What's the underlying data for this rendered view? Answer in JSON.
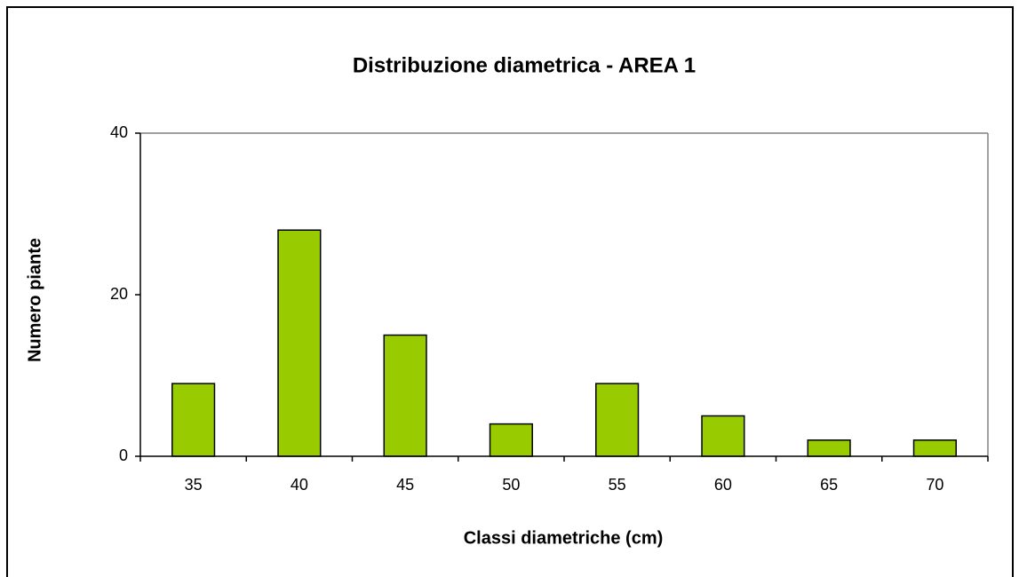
{
  "chart_data": {
    "type": "bar",
    "title": "Distribuzione diametrica - AREA 1",
    "x_label": "Classi diametriche (cm)",
    "y_label": "Numero piante",
    "categories": [
      "35",
      "40",
      "45",
      "50",
      "55",
      "60",
      "65",
      "70"
    ],
    "values": [
      9,
      28,
      15,
      4,
      9,
      5,
      2,
      2
    ],
    "color": "#99cc00",
    "ylim": [
      0,
      40
    ],
    "yticks": [
      0,
      20,
      40
    ],
    "grid": false
  }
}
